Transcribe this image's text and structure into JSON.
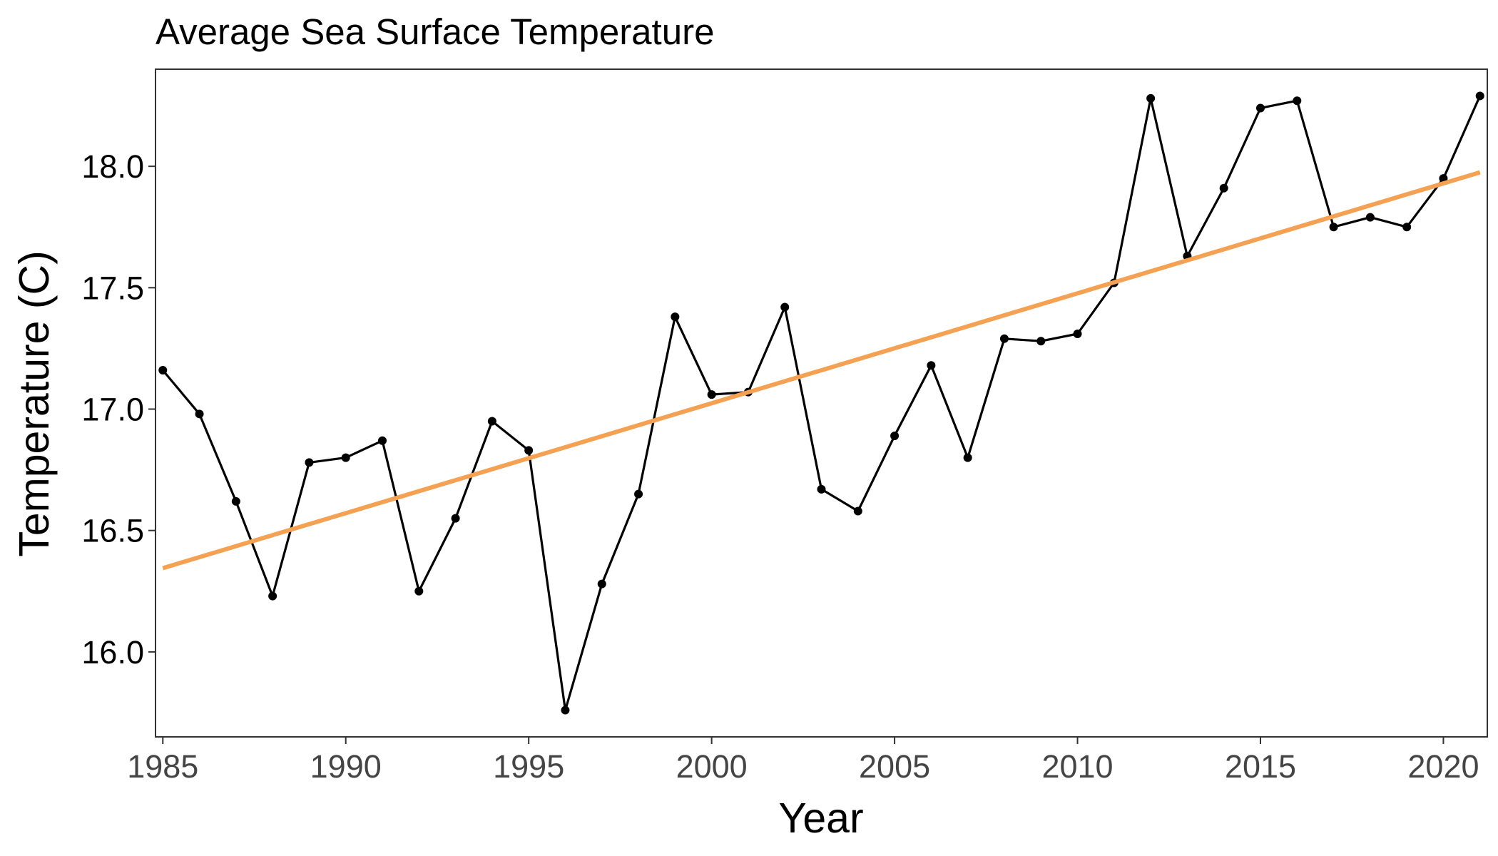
{
  "chart_data": {
    "type": "line",
    "title": "Average Sea Surface Temperature",
    "xlabel": "Year",
    "ylabel": "Temperature (C)",
    "xlim": [
      1984.8,
      2021.2
    ],
    "ylim": [
      15.65,
      18.4
    ],
    "x_ticks": [
      1985,
      1990,
      1995,
      2000,
      2005,
      2010,
      2015,
      2020
    ],
    "y_ticks": [
      16.0,
      16.5,
      17.0,
      17.5,
      18.0
    ],
    "y_tick_labels": [
      "16.0",
      "16.5",
      "17.0",
      "17.5",
      "18.0"
    ],
    "grid": false,
    "legend": "none",
    "series": [
      {
        "color": "#000000",
        "marker": "circle",
        "x": [
          1985,
          1986,
          1987,
          1988,
          1989,
          1990,
          1991,
          1992,
          1993,
          1994,
          1995,
          1996,
          1997,
          1998,
          1999,
          2000,
          2001,
          2002,
          2003,
          2004,
          2005,
          2006,
          2007,
          2008,
          2009,
          2010,
          2011,
          2012,
          2013,
          2014,
          2015,
          2016,
          2017,
          2018,
          2019,
          2020,
          2021
        ],
        "values": [
          17.16,
          16.98,
          16.62,
          16.23,
          16.78,
          16.8,
          16.87,
          16.25,
          16.55,
          16.95,
          16.83,
          15.76,
          16.28,
          16.65,
          17.38,
          17.06,
          17.07,
          17.42,
          16.67,
          16.58,
          16.89,
          17.18,
          16.8,
          17.29,
          17.28,
          17.31,
          17.52,
          18.28,
          17.63,
          17.91,
          18.24,
          18.27,
          17.75,
          17.79,
          17.75,
          17.95,
          18.29
        ]
      }
    ],
    "trendline": {
      "color": "#F4A153",
      "x": [
        1985,
        2021
      ],
      "values": [
        16.345,
        17.975
      ]
    }
  }
}
